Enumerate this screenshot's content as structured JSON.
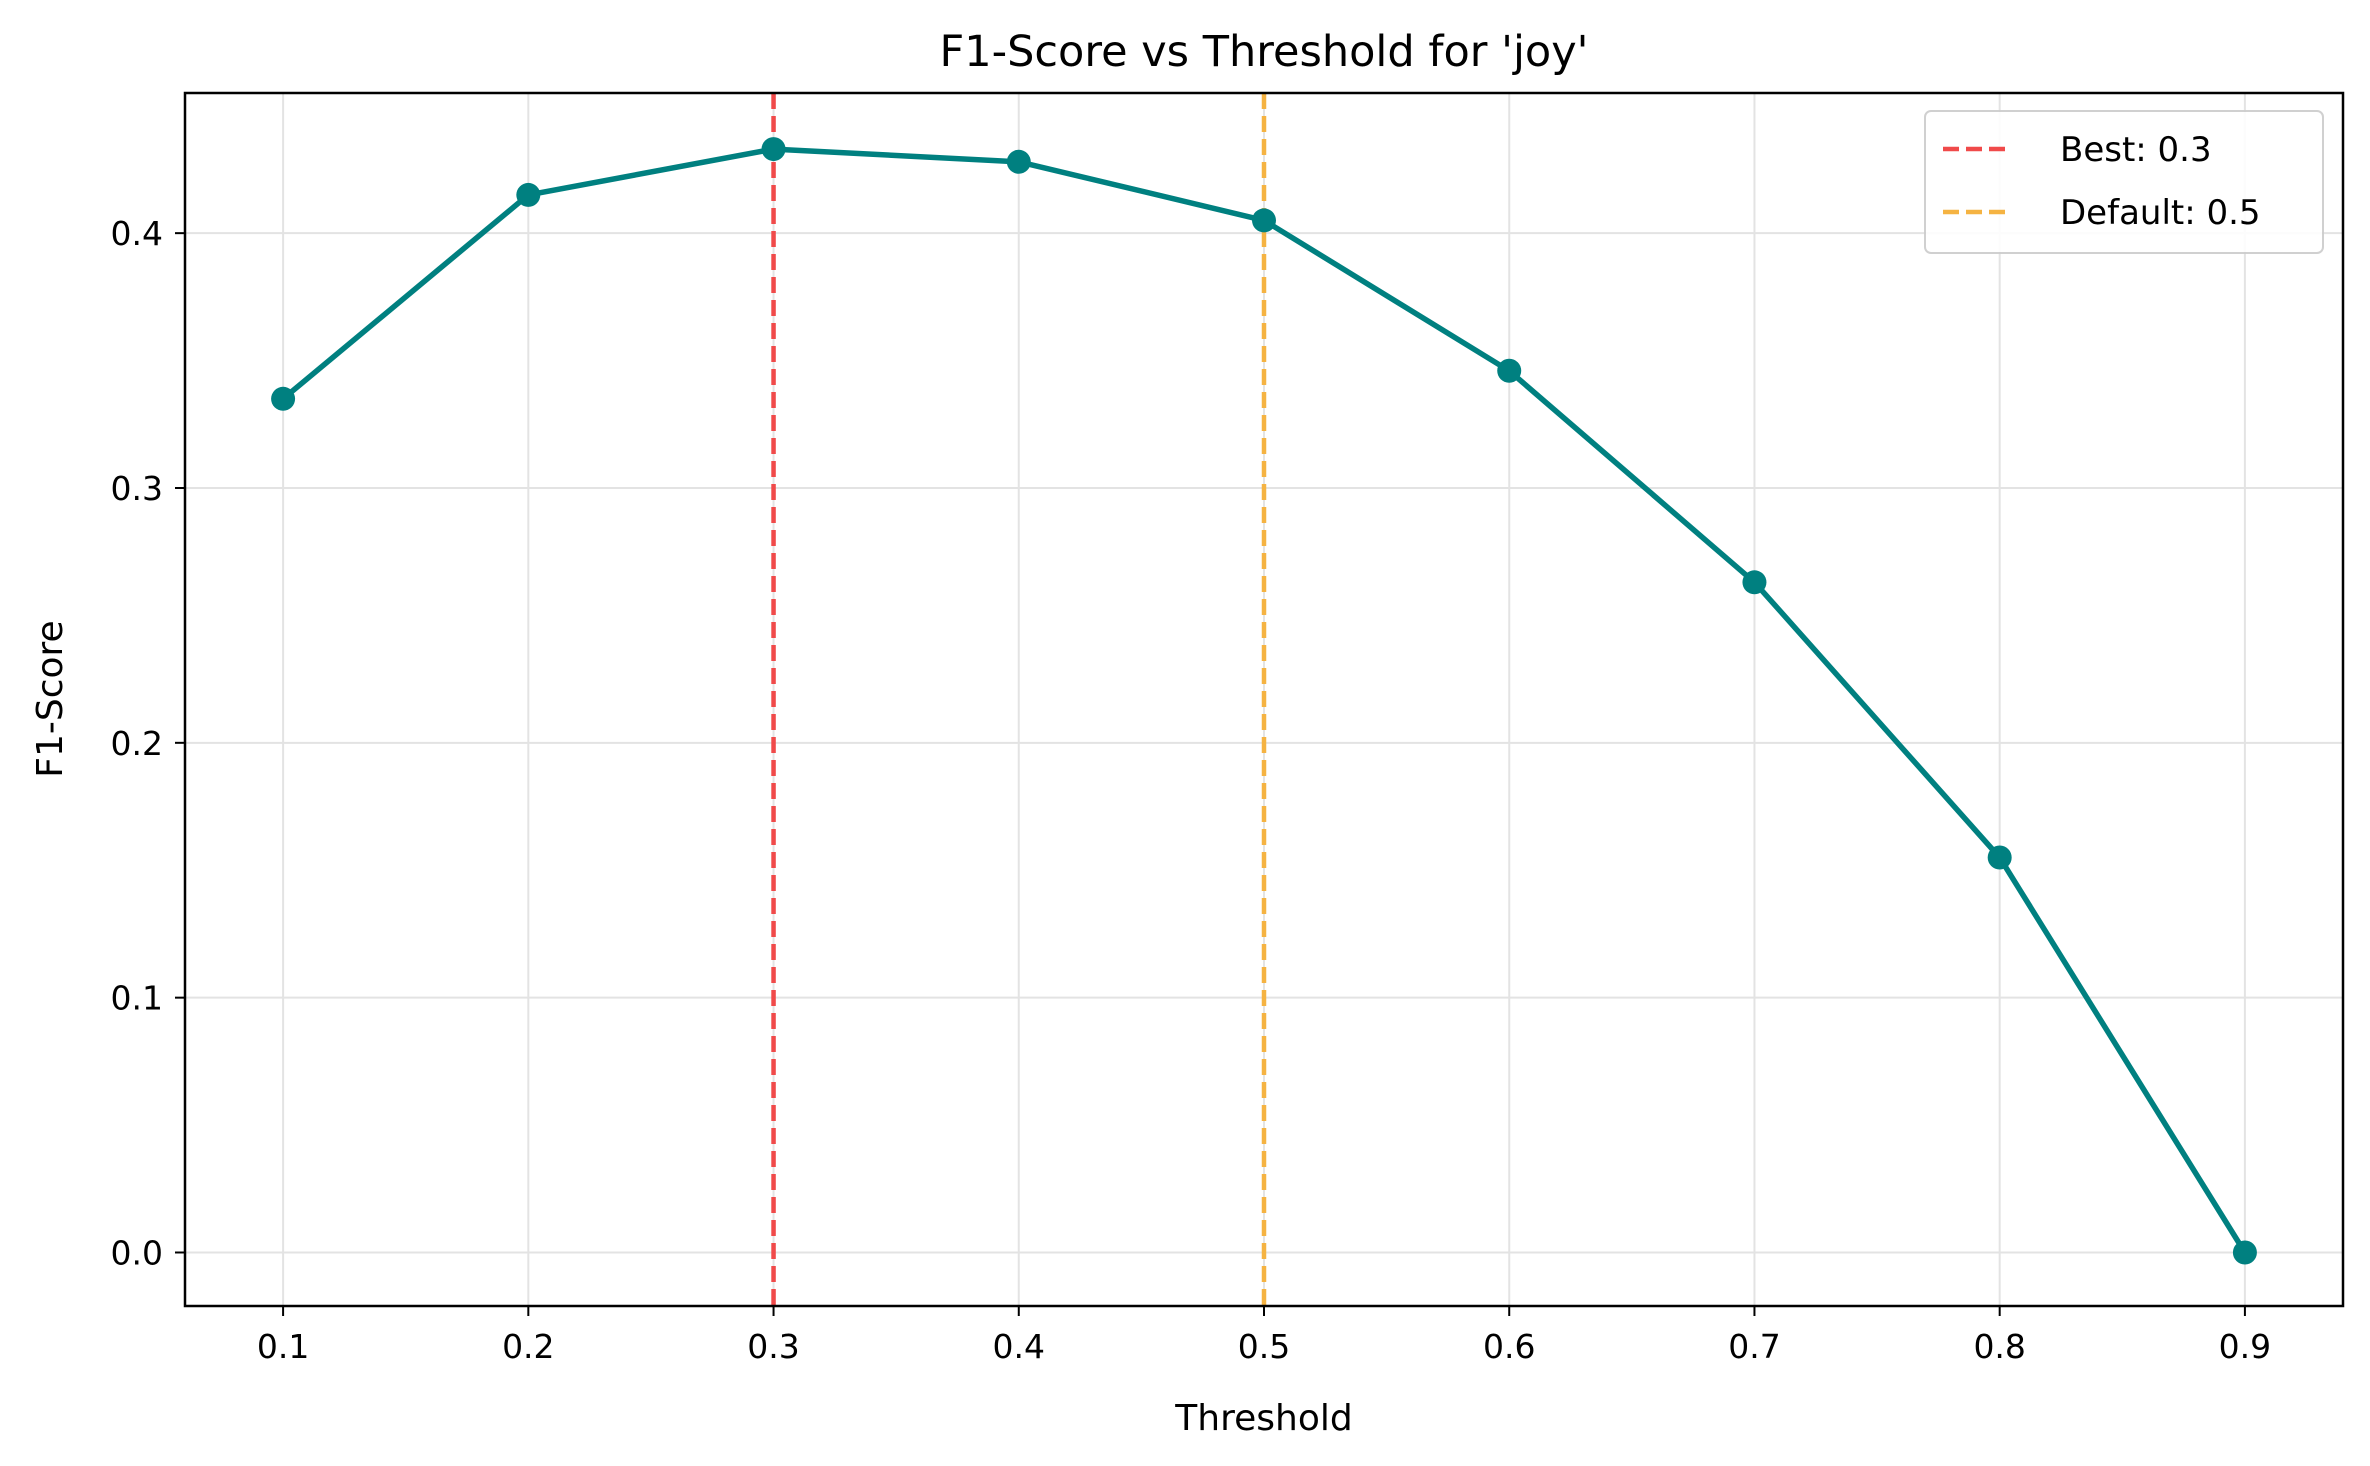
{
  "chart_data": {
    "type": "line",
    "title": "F1-Score vs Threshold for 'joy'",
    "xlabel": "Threshold",
    "ylabel": "F1-Score",
    "xlim": [
      0.06,
      0.94
    ],
    "ylim": [
      -0.021,
      0.455
    ],
    "xticks": [
      "0.1",
      "0.2",
      "0.3",
      "0.4",
      "0.5",
      "0.6",
      "0.7",
      "0.8",
      "0.9"
    ],
    "yticks": [
      "0.0",
      "0.1",
      "0.2",
      "0.3",
      "0.4"
    ],
    "grid": true,
    "legend_position": "top-right",
    "series": [
      {
        "color": "#008080",
        "marker": "circle",
        "x": [
          0.1,
          0.2,
          0.3,
          0.4,
          0.5,
          0.6,
          0.7,
          0.8,
          0.9
        ],
        "y": [
          0.335,
          0.415,
          0.433,
          0.428,
          0.405,
          0.346,
          0.263,
          0.155,
          0.0
        ]
      }
    ],
    "reference_lines": [
      {
        "label": "Best: 0.3",
        "x": 0.3,
        "color": "#f04a4a",
        "style": "dashed"
      },
      {
        "label": "Default: 0.5",
        "x": 0.5,
        "color": "#f5b342",
        "style": "dashed"
      }
    ]
  }
}
